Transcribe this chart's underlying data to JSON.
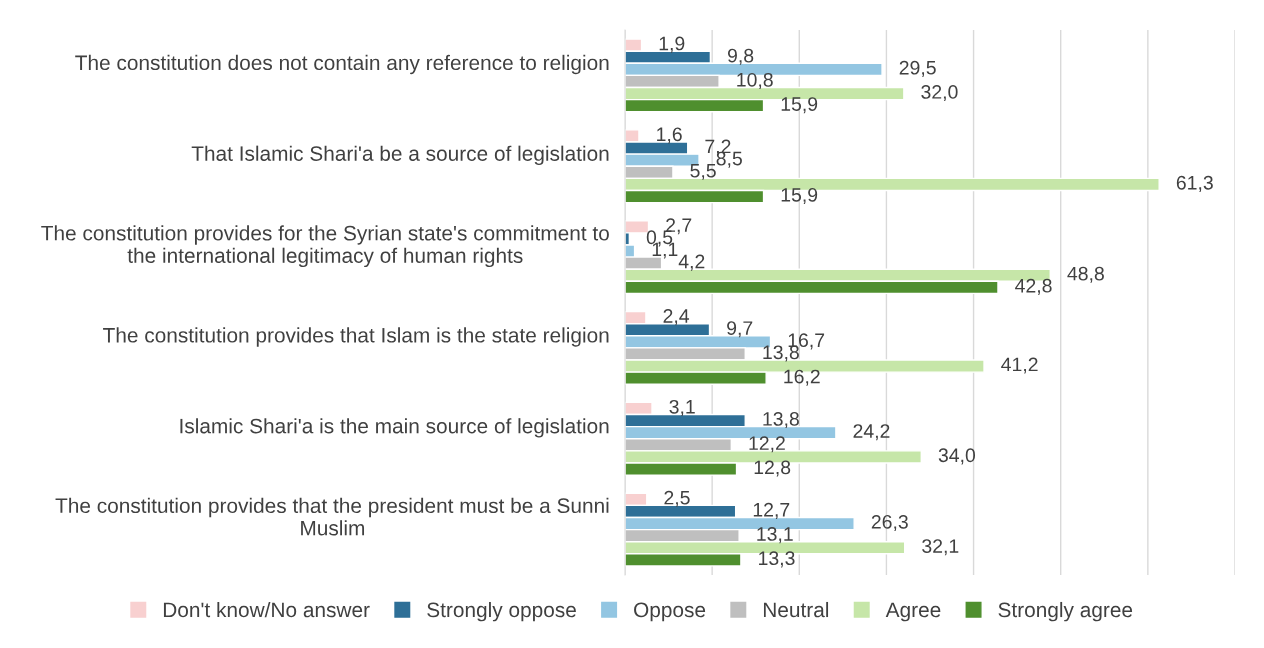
{
  "chart_data": {
    "type": "bar",
    "orientation": "horizontal",
    "categories": [
      "The constitution does not contain any reference to religion",
      "That Islamic Shari'a be a source of legislation",
      "The constitution provides for the Syrian state's commitment to the international legitimacy of human rights",
      "The constitution provides that Islam is the state religion",
      "Islamic Shari'a is the main source of legislation",
      "The constitution provides that the president must be a Sunni Muslim"
    ],
    "series": [
      {
        "name": "Don't know/No answer",
        "color": "#f8d0d0",
        "values": [
          1.9,
          1.6,
          2.7,
          2.4,
          3.1,
          2.5
        ],
        "value_labels": [
          "1,9",
          "1,6",
          "2,7",
          "2,4",
          "3,1",
          "2,5"
        ]
      },
      {
        "name": "Strongly oppose",
        "color": "#2e6f97",
        "values": [
          9.8,
          7.2,
          0.5,
          9.7,
          13.8,
          12.7
        ],
        "value_labels": [
          "9,8",
          "7,2",
          "0,5",
          "9,7",
          "13,8",
          "12,7"
        ]
      },
      {
        "name": "Oppose",
        "color": "#93c6e2",
        "values": [
          29.5,
          8.5,
          1.1,
          16.7,
          24.2,
          26.3
        ],
        "value_labels": [
          "29,5",
          "8,5",
          "1,1",
          "16,7",
          "24,2",
          "26,3"
        ]
      },
      {
        "name": "Neutral",
        "color": "#bfbfbf",
        "values": [
          10.8,
          5.5,
          4.2,
          13.8,
          12.2,
          13.1
        ],
        "value_labels": [
          "10,8",
          "5,5",
          "4,2",
          "13,8",
          "12,2",
          "13,1"
        ]
      },
      {
        "name": "Agree",
        "color": "#c6e6a8",
        "values": [
          32.0,
          61.3,
          48.8,
          41.2,
          34.0,
          32.1
        ],
        "value_labels": [
          "32,0",
          "61,3",
          "48,8",
          "41,2",
          "34,0",
          "32,1"
        ]
      },
      {
        "name": "Strongly agree",
        "color": "#4f8f2e",
        "values": [
          15.9,
          15.9,
          42.8,
          16.2,
          12.8,
          13.3
        ],
        "value_labels": [
          "15,9",
          "15,9",
          "42,8",
          "16,2",
          "12,8",
          "13,3"
        ]
      }
    ],
    "xlim": [
      0,
      70
    ],
    "xticks": [
      {
        "value": 0,
        "label": null
      },
      {
        "value": 10,
        "label": null
      },
      {
        "value": 20,
        "label": null
      },
      {
        "value": 30,
        "label": null
      },
      {
        "value": 40,
        "label": null
      },
      {
        "value": 50,
        "label": null
      },
      {
        "value": 60,
        "label": null
      },
      {
        "value": 70,
        "label": null
      }
    ],
    "grid": "x",
    "legend": "bottom",
    "tick_labels": "y"
  }
}
